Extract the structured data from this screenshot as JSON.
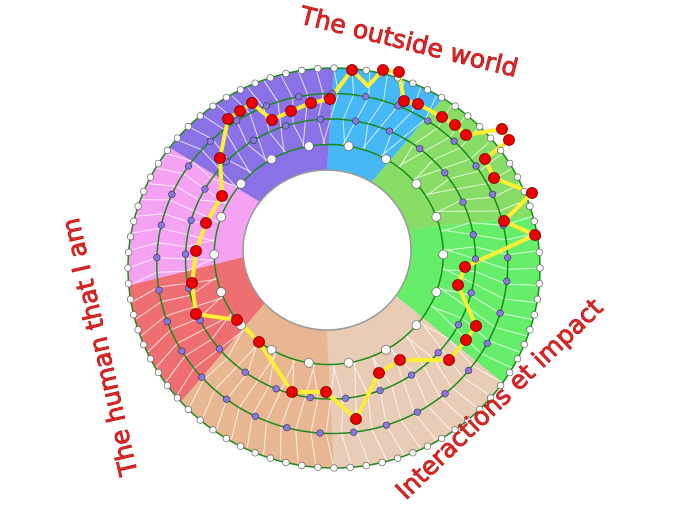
{
  "labels": {
    "top": "The outside world",
    "left": "The human that I am",
    "right": "Interactions et impact"
  },
  "colors": {
    "sectors": [
      "#45b8f5",
      "#88dd66",
      "#66ee6a",
      "#e9ccb6",
      "#e8b690",
      "#ee6e72",
      "#f5a2f2",
      "#8a72e6"
    ],
    "ring_line": "#1a8a1a",
    "path": "#ffee33",
    "path_node": "#ee0000",
    "mid_node": "#8877dd",
    "outer_node": "#ffffff"
  }
}
